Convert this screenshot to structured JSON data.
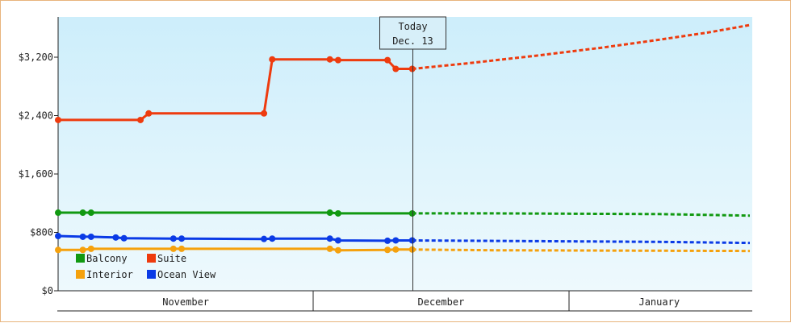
{
  "chart_data": {
    "type": "line",
    "y_axis": {
      "ticks": [
        {
          "value": 0,
          "label": "$0"
        },
        {
          "value": 800,
          "label": "$800"
        },
        {
          "value": 1600,
          "label": "$1,600"
        },
        {
          "value": 2400,
          "label": "$2,400"
        },
        {
          "value": 3200,
          "label": "$3,200"
        }
      ],
      "ylim": [
        0,
        3200
      ]
    },
    "x_axis": {
      "months": [
        "November",
        "December",
        "January"
      ],
      "range": [
        "2023-10-31",
        "2024-01-23"
      ]
    },
    "today_marker": {
      "line1": "Today",
      "line2": "Dec. 13",
      "date": "2023-12-13"
    },
    "background": {
      "top": "#cdeefb",
      "bottom": "#eef9fd"
    },
    "legend": {
      "placement": "bottom-left"
    },
    "series": [
      {
        "name": "Suite",
        "color": "#ee3b0e",
        "history": [
          [
            "2023-10-31",
            2340
          ],
          [
            "2023-11-10",
            2340
          ],
          [
            "2023-11-11",
            2430
          ],
          [
            "2023-11-25",
            2430
          ],
          [
            "2023-11-26",
            3170
          ],
          [
            "2023-12-03",
            3170
          ],
          [
            "2023-12-04",
            3160
          ],
          [
            "2023-12-10",
            3160
          ],
          [
            "2023-12-11",
            3040
          ],
          [
            "2023-12-13",
            3040
          ]
        ],
        "forecast": [
          [
            "2023-12-13",
            3040
          ],
          [
            "2023-12-20",
            3120
          ],
          [
            "2023-12-28",
            3220
          ],
          [
            "2024-01-05",
            3330
          ],
          [
            "2024-01-12",
            3440
          ],
          [
            "2024-01-18",
            3540
          ],
          [
            "2024-01-23",
            3640
          ]
        ]
      },
      {
        "name": "Balcony",
        "color": "#119911",
        "history": [
          [
            "2023-10-31",
            1070
          ],
          [
            "2023-11-03",
            1070
          ],
          [
            "2023-11-04",
            1070
          ],
          [
            "2023-12-03",
            1070
          ],
          [
            "2023-12-04",
            1060
          ],
          [
            "2023-12-13",
            1060
          ]
        ],
        "forecast": [
          [
            "2023-12-13",
            1060
          ],
          [
            "2023-12-23",
            1060
          ],
          [
            "2024-01-12",
            1050
          ],
          [
            "2024-01-23",
            1030
          ]
        ]
      },
      {
        "name": "Ocean View",
        "color": "#0b3be6",
        "history": [
          [
            "2023-10-31",
            750
          ],
          [
            "2023-11-03",
            740
          ],
          [
            "2023-11-04",
            740
          ],
          [
            "2023-11-07",
            730
          ],
          [
            "2023-11-08",
            720
          ],
          [
            "2023-11-14",
            715
          ],
          [
            "2023-11-15",
            715
          ],
          [
            "2023-11-25",
            710
          ],
          [
            "2023-11-26",
            715
          ],
          [
            "2023-12-03",
            715
          ],
          [
            "2023-12-04",
            690
          ],
          [
            "2023-12-10",
            685
          ],
          [
            "2023-12-11",
            690
          ],
          [
            "2023-12-13",
            690
          ]
        ],
        "forecast": [
          [
            "2023-12-13",
            690
          ],
          [
            "2023-12-20",
            685
          ],
          [
            "2024-01-12",
            670
          ],
          [
            "2024-01-23",
            655
          ]
        ]
      },
      {
        "name": "Interior",
        "color": "#f5a10d",
        "history": [
          [
            "2023-10-31",
            560
          ],
          [
            "2023-11-03",
            560
          ],
          [
            "2023-11-04",
            575
          ],
          [
            "2023-11-14",
            575
          ],
          [
            "2023-11-15",
            575
          ],
          [
            "2023-12-03",
            575
          ],
          [
            "2023-12-04",
            555
          ],
          [
            "2023-12-10",
            560
          ],
          [
            "2023-12-11",
            565
          ],
          [
            "2023-12-13",
            565
          ]
        ],
        "forecast": [
          [
            "2023-12-13",
            565
          ],
          [
            "2023-12-23",
            555
          ],
          [
            "2024-01-23",
            545
          ]
        ]
      }
    ],
    "legend_order": [
      "Balcony",
      "Suite",
      "Interior",
      "Ocean View"
    ]
  }
}
